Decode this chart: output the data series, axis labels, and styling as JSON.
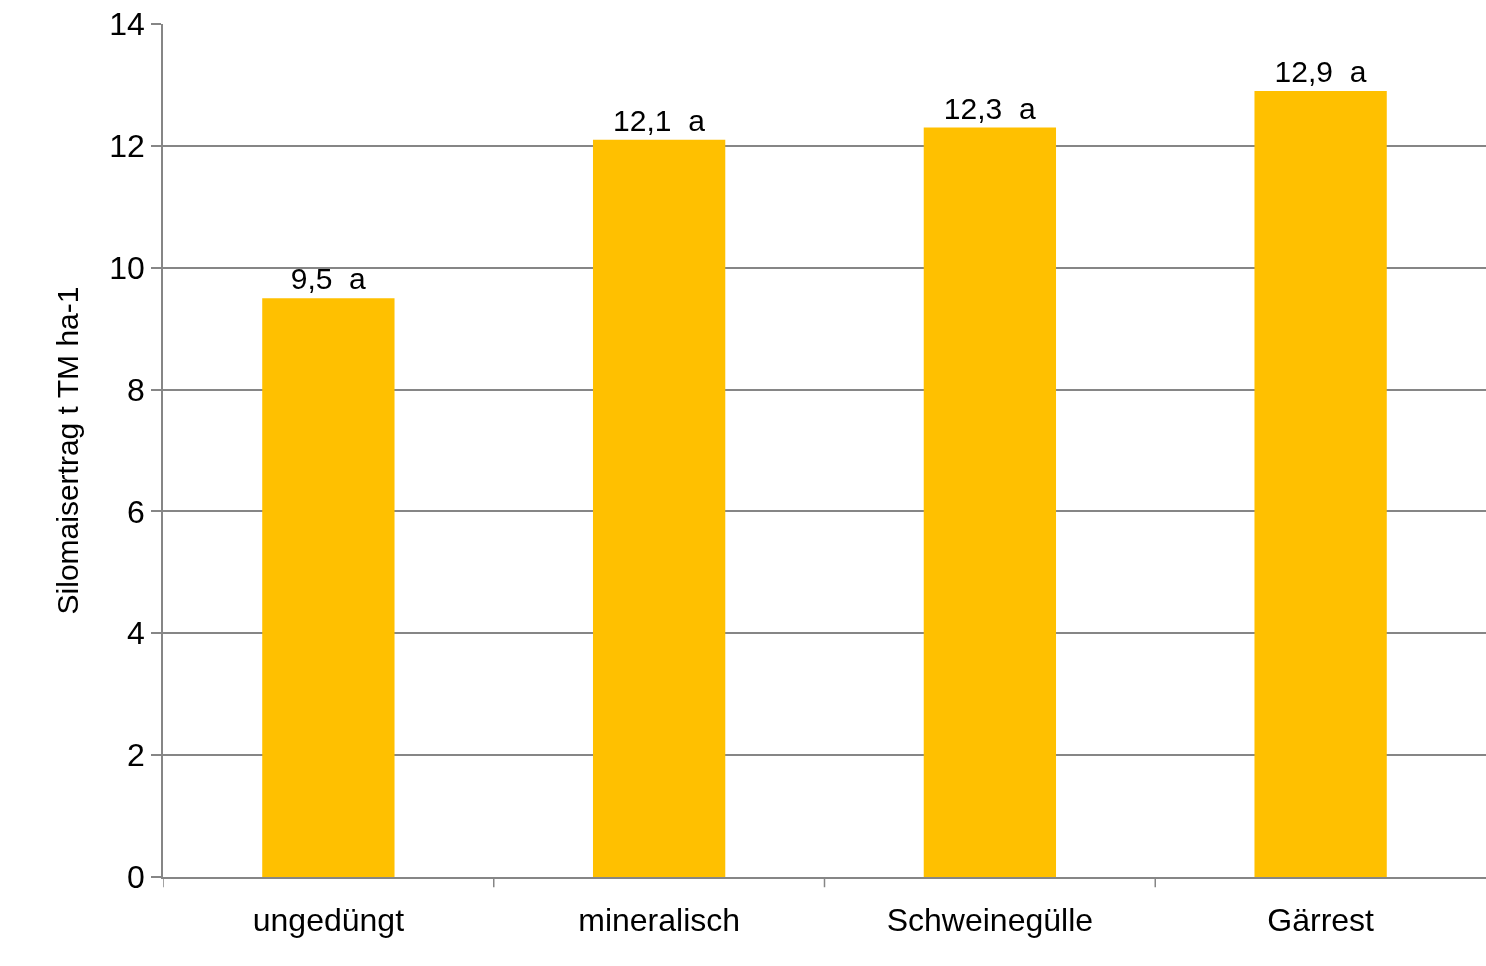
{
  "chart_data": {
    "type": "bar",
    "ylabel": "Silomaisertrag t TM ha-1",
    "categories": [
      "ungedüngt",
      "mineralisch",
      "Schweinegülle",
      "Gärrest"
    ],
    "values": [
      9.5,
      12.1,
      12.3,
      12.9
    ],
    "value_labels": [
      "9,5  a",
      "12,1  a",
      "12,3  a",
      "12,9  a"
    ],
    "color": "#ffc000",
    "ylim": [
      0,
      14
    ],
    "yticks": [
      0,
      2,
      4,
      6,
      8,
      10,
      12,
      14
    ],
    "grid": "y",
    "legend": false
  }
}
